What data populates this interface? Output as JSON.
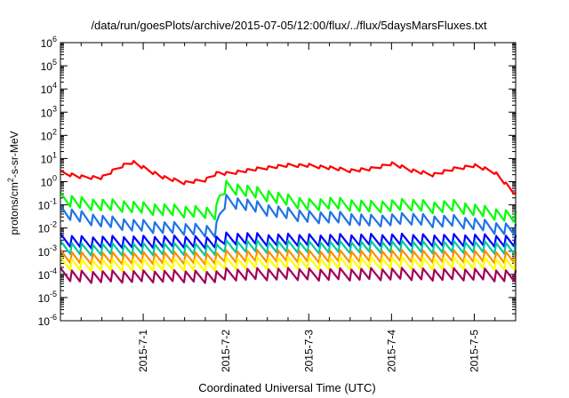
{
  "chart_data": {
    "type": "line",
    "title": "/data/run/goesPlots/archive/2015-07-05/12:00/flux/../flux/5daysMarsFluxes.txt",
    "xlabel": "Coordinated Universal Time (UTC)",
    "ylabel": {
      "base": "protons/cm",
      "sup": "2",
      "rest": "-s-sr-MeV"
    },
    "yscale": "log",
    "ylim": [
      1e-06,
      1000000.0
    ],
    "xlim": [
      "2015-06-30 00:00",
      "2015-07-05 12:00"
    ],
    "grid": false,
    "legend": "none",
    "x_ticks": [
      "2015-7-1",
      "2015-7-2",
      "2015-7-3",
      "2015-7-4",
      "2015-7-5"
    ],
    "y_ticks": [
      {
        "base": "10",
        "exp": "-6"
      },
      {
        "base": "10",
        "exp": "-5"
      },
      {
        "base": "10",
        "exp": "-4"
      },
      {
        "base": "10",
        "exp": "-3"
      },
      {
        "base": "10",
        "exp": "-2"
      },
      {
        "base": "10",
        "exp": "-1"
      },
      {
        "base": "10",
        "exp": "0"
      },
      {
        "base": "10",
        "exp": "1"
      },
      {
        "base": "10",
        "exp": "2"
      },
      {
        "base": "10",
        "exp": "3"
      },
      {
        "base": "10",
        "exp": "4"
      },
      {
        "base": "10",
        "exp": "5"
      },
      {
        "base": "10",
        "exp": "6"
      }
    ],
    "x": [
      "2015-06-30 00:00",
      "2015-06-30 06:00",
      "2015-06-30 12:00",
      "2015-06-30 18:00",
      "2015-06-30 21:00",
      "2015-07-01 00:00",
      "2015-07-01 06:00",
      "2015-07-01 12:00",
      "2015-07-01 18:00",
      "2015-07-01 21:00",
      "2015-07-01 22:00",
      "2015-07-02 00:00",
      "2015-07-02 06:00",
      "2015-07-02 12:00",
      "2015-07-02 18:00",
      "2015-07-03 00:00",
      "2015-07-03 06:00",
      "2015-07-03 12:00",
      "2015-07-03 18:00",
      "2015-07-04 00:00",
      "2015-07-04 06:00",
      "2015-07-04 12:00",
      "2015-07-04 18:00",
      "2015-07-05 00:00",
      "2015-07-05 06:00",
      "2015-07-05 12:00"
    ],
    "series": [
      {
        "color": "#ff0000",
        "values": [
          2.5,
          1.6,
          1.5,
          5,
          7,
          4,
          1.5,
          0.9,
          1.2,
          2.2,
          2.4,
          2.2,
          3,
          4,
          5,
          5,
          4,
          3,
          3.5,
          6,
          3,
          2,
          3.5,
          5,
          2.5,
          0.28
        ]
      },
      {
        "color": "#00ff00",
        "values": [
          0.18,
          0.12,
          0.1,
          0.09,
          0.08,
          0.07,
          0.06,
          0.05,
          0.05,
          0.04,
          0.2,
          0.6,
          0.4,
          0.25,
          0.15,
          0.1,
          0.12,
          0.1,
          0.08,
          0.09,
          0.1,
          0.08,
          0.09,
          0.06,
          0.04,
          0.028
        ]
      },
      {
        "color": "#1e73e6",
        "values": [
          0.05,
          0.03,
          0.02,
          0.015,
          0.013,
          0.012,
          0.01,
          0.009,
          0.008,
          0.007,
          0.03,
          0.15,
          0.1,
          0.06,
          0.04,
          0.03,
          0.03,
          0.025,
          0.02,
          0.022,
          0.025,
          0.02,
          0.02,
          0.015,
          0.01,
          0.008
        ]
      },
      {
        "color": "#0000ff",
        "values": [
          0.003,
          0.0025,
          0.0025,
          0.0025,
          0.0025,
          0.0025,
          0.0025,
          0.0025,
          0.0025,
          0.0025,
          0.0025,
          0.0035,
          0.0035,
          0.003,
          0.003,
          0.003,
          0.003,
          0.003,
          0.003,
          0.003,
          0.003,
          0.003,
          0.003,
          0.003,
          0.0028,
          0.0025
        ]
      },
      {
        "color": "#00c8a0",
        "values": [
          0.0015,
          0.0012,
          0.0012,
          0.0012,
          0.0012,
          0.0012,
          0.0012,
          0.0012,
          0.0012,
          0.0012,
          0.0012,
          0.0016,
          0.0016,
          0.0015,
          0.0015,
          0.0015,
          0.0015,
          0.0015,
          0.0015,
          0.0015,
          0.0015,
          0.0015,
          0.0015,
          0.0015,
          0.0014,
          0.0012
        ]
      },
      {
        "color": "#ff8c00",
        "values": [
          0.0006,
          0.0005,
          0.0005,
          0.0005,
          0.0005,
          0.0005,
          0.0005,
          0.0005,
          0.0005,
          0.0005,
          0.0005,
          0.0006,
          0.0006,
          0.0006,
          0.0006,
          0.0006,
          0.0006,
          0.0006,
          0.0006,
          0.0006,
          0.0006,
          0.0006,
          0.0006,
          0.0006,
          0.00055,
          0.0005
        ]
      },
      {
        "color": "#ffff00",
        "values": [
          0.0003,
          0.00025,
          0.00025,
          0.00025,
          0.00025,
          0.00025,
          0.00025,
          0.00025,
          0.00025,
          0.00025,
          0.00025,
          0.0003,
          0.0003,
          0.0003,
          0.0003,
          0.0003,
          0.0003,
          0.0003,
          0.0003,
          0.0003,
          0.0003,
          0.0003,
          0.0003,
          0.0003,
          0.00028,
          0.00025
        ]
      },
      {
        "color": "#a0005a",
        "values": [
          0.0001,
          8e-05,
          8e-05,
          8e-05,
          8e-05,
          8e-05,
          8e-05,
          8e-05,
          8e-05,
          8e-05,
          8e-05,
          0.0001,
          0.0001,
          0.0001,
          0.0001,
          0.0001,
          0.0001,
          0.0001,
          0.0001,
          0.0001,
          0.0001,
          0.0001,
          0.0001,
          0.0001,
          9e-05,
          8e-05
        ]
      }
    ]
  }
}
